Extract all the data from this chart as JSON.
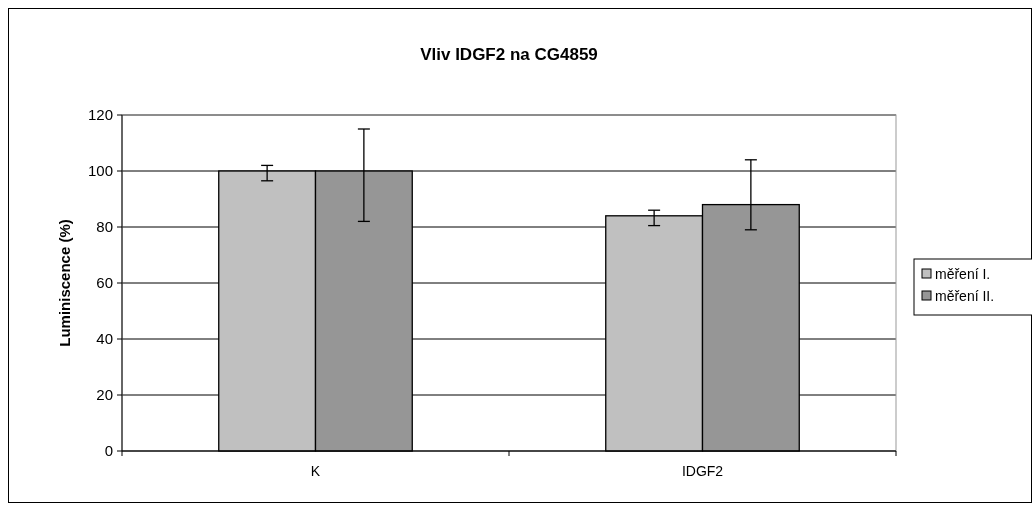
{
  "chart_data": {
    "type": "bar",
    "title": "Vliv IDGF2 na CG4859",
    "ylabel": "Luminiscence (%)",
    "categories": [
      "K",
      "IDGF2"
    ],
    "series": [
      {
        "name": "měření I.",
        "color": "#c0c0c0",
        "values": [
          100,
          84
        ],
        "errors": [
          [
            96.5,
            102
          ],
          [
            80.5,
            86
          ]
        ]
      },
      {
        "name": "měření II.",
        "color": "#969696",
        "values": [
          100,
          88
        ],
        "errors": [
          [
            82,
            115
          ],
          [
            79,
            104
          ]
        ]
      }
    ],
    "ylim": [
      0,
      120
    ],
    "yticks": [
      0,
      20,
      40,
      60,
      80,
      100,
      120
    ],
    "grid": "y",
    "legend": "right"
  }
}
